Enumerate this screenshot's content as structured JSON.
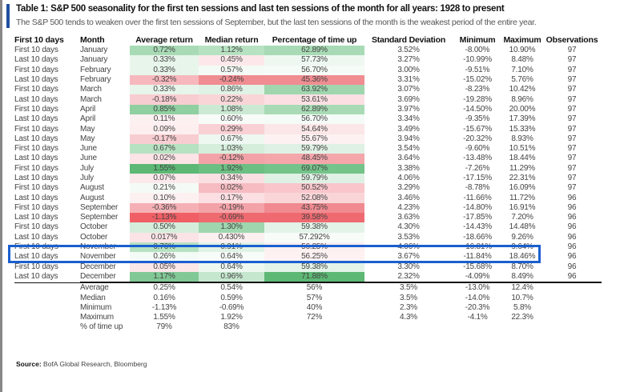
{
  "title": "Table 1: S&P 500 seasonality for the first ten sessions and last ten sessions of the month for all years: 1928 to present",
  "subtitle": "The S&P 500 tends to weaken over the first ten sessions of September, but the last ten sessions of the month is the weakest period of the entire year.",
  "headers": [
    "First 10 days",
    "Month",
    "Average return",
    "Median return",
    "Percentage of time up",
    "Standard Deviation",
    "Minimum",
    "Maximum",
    "Observations"
  ],
  "rows": [
    {
      "period": "First 10 days",
      "month": "January",
      "avg": "0.72%",
      "median": "1.12%",
      "pct_up": "62.89%",
      "std": "3.52%",
      "min": "-8.00%",
      "max": "10.90%",
      "obs": "97",
      "colors": [
        "#a8dbb5",
        "#b7e2c2",
        "#a8dbb5"
      ]
    },
    {
      "period": "Last 10 days",
      "month": "January",
      "avg": "0.33%",
      "median": "0.45%",
      "pct_up": "57.73%",
      "std": "3.27%",
      "min": "-10.99%",
      "max": "8.48%",
      "obs": "97",
      "colors": [
        "#e8f5eb",
        "#fce8ea",
        "#eef8f1"
      ]
    },
    {
      "period": "First 10 days",
      "month": "February",
      "avg": "0.33%",
      "median": "0.57%",
      "pct_up": "56.70%",
      "std": "3.00%",
      "min": "-9.51%",
      "max": "7.10%",
      "obs": "97",
      "colors": [
        "#e8f5eb",
        "#f4fbf6",
        "#f5fbf7"
      ]
    },
    {
      "period": "Last 10 days",
      "month": "February",
      "avg": "-0.32%",
      "median": "-0.24%",
      "pct_up": "45.36%",
      "std": "3.31%",
      "min": "-15.02%",
      "max": "5.76%",
      "obs": "97",
      "colors": [
        "#f6b8bd",
        "#f08d92",
        "#f08d92"
      ]
    },
    {
      "period": "First 10 days",
      "month": "March",
      "avg": "0.33%",
      "median": "0.86%",
      "pct_up": "63.92%",
      "std": "3.07%",
      "min": "-8.23%",
      "max": "10.42%",
      "obs": "97",
      "colors": [
        "#e8f5eb",
        "#e0f2e5",
        "#9fd6ae"
      ]
    },
    {
      "period": "Last 10 days",
      "month": "March",
      "avg": "-0.18%",
      "median": "0.22%",
      "pct_up": "53.61%",
      "std": "3.69%",
      "min": "-19.28%",
      "max": "8.96%",
      "obs": "97",
      "colors": [
        "#f8cdd1",
        "#f9d5d8",
        "#fbe0e3"
      ]
    },
    {
      "period": "First 10 days",
      "month": "April",
      "avg": "0.85%",
      "median": "1.08%",
      "pct_up": "62.89%",
      "std": "3.97%",
      "min": "-14.50%",
      "max": "20.00%",
      "obs": "97",
      "colors": [
        "#8fcfa0",
        "#cbe9d3",
        "#a8dbb5"
      ]
    },
    {
      "period": "Last 10 days",
      "month": "April",
      "avg": "0.11%",
      "median": "0.60%",
      "pct_up": "56.70%",
      "std": "3.34%",
      "min": "-9.35%",
      "max": "17.39%",
      "obs": "97",
      "colors": [
        "#fdf0f1",
        "#f8fcf9",
        "#f5fbf7"
      ]
    },
    {
      "period": "First 10 days",
      "month": "May",
      "avg": "0.09%",
      "median": "0.29%",
      "pct_up": "54.64%",
      "std": "3.49%",
      "min": "-15.67%",
      "max": "15.33%",
      "obs": "97",
      "colors": [
        "#fdeef0",
        "#f9d0d4",
        "#fbe6e8"
      ]
    },
    {
      "period": "Last 10 days",
      "month": "May",
      "avg": "-0.17%",
      "median": "0.67%",
      "pct_up": "55.67%",
      "std": "3.94%",
      "min": "-20.32%",
      "max": "8.93%",
      "obs": "97",
      "colors": [
        "#f8cdd1",
        "#eef8f1",
        "#fdf1f2"
      ]
    },
    {
      "period": "First 10 days",
      "month": "June",
      "avg": "0.67%",
      "median": "1.03%",
      "pct_up": "59.79%",
      "std": "3.54%",
      "min": "-9.60%",
      "max": "10.51%",
      "obs": "97",
      "colors": [
        "#b7e2c2",
        "#d5eedb",
        "#dff1e4"
      ]
    },
    {
      "period": "Last 10 days",
      "month": "June",
      "avg": "0.02%",
      "median": "-0.12%",
      "pct_up": "48.45%",
      "std": "3.64%",
      "min": "-13.48%",
      "max": "18.44%",
      "obs": "97",
      "colors": [
        "#fbe3e6",
        "#f3a3a8",
        "#f4a6ab"
      ]
    },
    {
      "period": "First 10 days",
      "month": "July",
      "avg": "1.55%",
      "median": "1.92%",
      "pct_up": "69.07%",
      "std": "3.38%",
      "min": "-7.26%",
      "max": "11.29%",
      "obs": "97",
      "colors": [
        "#5cb874",
        "#6cbf82",
        "#74c38a"
      ]
    },
    {
      "period": "Last 10 days",
      "month": "July",
      "avg": "0.07%",
      "median": "0.34%",
      "pct_up": "59.79%",
      "std": "4.06%",
      "min": "-17.15%",
      "max": "22.31%",
      "obs": "97",
      "colors": [
        "#fbe9eb",
        "#fbe0e3",
        "#dff1e4"
      ]
    },
    {
      "period": "First 10 days",
      "month": "August",
      "avg": "0.21%",
      "median": "0.02%",
      "pct_up": "50.52%",
      "std": "3.29%",
      "min": "-8.78%",
      "max": "16.09%",
      "obs": "97",
      "colors": [
        "#f4fbf6",
        "#f6bcc1",
        "#f8c6cb"
      ]
    },
    {
      "period": "Last 10 days",
      "month": "August",
      "avg": "0.10%",
      "median": "0.17%",
      "pct_up": "52.08%",
      "std": "3.46%",
      "min": "-11.66%",
      "max": "11.72%",
      "obs": "96",
      "colors": [
        "#fdf0f1",
        "#fbdfe2",
        "#f9d5d8"
      ]
    },
    {
      "period": "First 10 days",
      "month": "September",
      "avg": "-0.36%",
      "median": "-0.19%",
      "pct_up": "43.75%",
      "std": "4.23%",
      "min": "-14.80%",
      "max": "16.91%",
      "obs": "96",
      "colors": [
        "#f5b0b5",
        "#f3a3a8",
        "#f08a90"
      ]
    },
    {
      "period": "Last 10 days",
      "month": "September",
      "avg": "-1.13%",
      "median": "-0.69%",
      "pct_up": "39.58%",
      "std": "3.63%",
      "min": "-17.85%",
      "max": "7.20%",
      "obs": "96",
      "colors": [
        "#ef5f65",
        "#ee6a6f",
        "#ef6a70"
      ]
    },
    {
      "period": "First 10 days",
      "month": "October",
      "avg": "0.50%",
      "median": "1.30%",
      "pct_up": "59.38%",
      "std": "4.30%",
      "min": "-14.43%",
      "max": "14.48%",
      "obs": "96",
      "colors": [
        "#d5eedb",
        "#9fd6ae",
        "#e3f3e7"
      ]
    },
    {
      "period": "Last 10 days",
      "month": "October",
      "avg": "0.017%",
      "median": "0.430%",
      "pct_up": "57.292%",
      "std": "3.53%",
      "min": "-18.66%",
      "max": "9.26%",
      "obs": "96",
      "colors": [
        "#fbe3e6",
        "#fdf0f1",
        "#f8fcf9"
      ],
      "highlighted": true
    },
    {
      "period": "First 10 days",
      "month": "November",
      "avg": "0.76%",
      "median": "0.91%",
      "pct_up": "56.25%",
      "std": "4.06%",
      "min": "-16.81%",
      "max": "9.64%",
      "obs": "96",
      "colors": [
        "#b7e2c2",
        "#e0f2e5",
        "#fcf0f1"
      ]
    },
    {
      "period": "Last 10 days",
      "month": "November",
      "avg": "0.26%",
      "median": "0.64%",
      "pct_up": "56.25%",
      "std": "3.67%",
      "min": "-11.84%",
      "max": "18.46%",
      "obs": "96",
      "colors": [
        "#f4fbf6",
        "#f8fcf9",
        "#fdf1f2"
      ]
    },
    {
      "period": "First 10 days",
      "month": "December",
      "avg": "0.05%",
      "median": "0.64%",
      "pct_up": "59.38%",
      "std": "3.30%",
      "min": "-15.68%",
      "max": "8.70%",
      "obs": "96",
      "colors": [
        "#fbe6e8",
        "#eef8f1",
        "#e3f3e7"
      ]
    },
    {
      "period": "Last 10 days",
      "month": "December",
      "avg": "1.17%",
      "median": "0.96%",
      "pct_up": "71.88%",
      "std": "2.32%",
      "min": "-4.09%",
      "max": "8.49%",
      "obs": "96",
      "colors": [
        "#80c895",
        "#c5e7ce",
        "#5cb874"
      ]
    }
  ],
  "summary": [
    {
      "label": "Average",
      "avg": "0.25%",
      "median": "0.54%",
      "pct_up": "56%",
      "std": "3.5%",
      "min": "-13.0%",
      "max": "12.4%"
    },
    {
      "label": "Median",
      "avg": "0.16%",
      "median": "0.59%",
      "pct_up": "57%",
      "std": "3.5%",
      "min": "-14.0%",
      "max": "10.7%"
    },
    {
      "label": "Minimum",
      "avg": "-1.13%",
      "median": "-0.69%",
      "pct_up": "40%",
      "std": "2.3%",
      "min": "-20.3%",
      "max": "5.8%"
    },
    {
      "label": "Maximum",
      "avg": "1.55%",
      "median": "1.92%",
      "pct_up": "72%",
      "std": "4.3%",
      "min": "-4.1%",
      "max": "22.3%"
    },
    {
      "label": "% of time up",
      "avg": "79%",
      "median": "83%"
    }
  ],
  "source": {
    "label": "Source:",
    "text": "BofA Global Research, Bloomberg"
  },
  "highlight_color": "#1a5fd0"
}
